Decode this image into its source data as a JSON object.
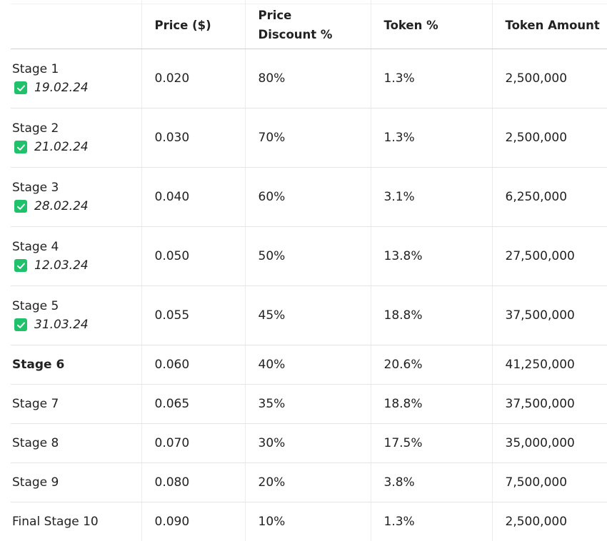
{
  "table": {
    "headers": [
      "",
      "Price ($)",
      "Price Discount %",
      "Token %",
      "Token Amount"
    ],
    "header_lines": {
      "price_discount": [
        "Price",
        "Discount %"
      ]
    },
    "rows": [
      {
        "stage": "Stage 1",
        "date": "19.02.24",
        "completed": true,
        "bold": false,
        "price": "0.020",
        "discount": "80%",
        "token_pct": "1.3%",
        "token_amount": "2,500,000"
      },
      {
        "stage": "Stage 2",
        "date": "21.02.24",
        "completed": true,
        "bold": false,
        "price": "0.030",
        "discount": "70%",
        "token_pct": "1.3%",
        "token_amount": "2,500,000"
      },
      {
        "stage": "Stage 3",
        "date": "28.02.24",
        "completed": true,
        "bold": false,
        "price": "0.040",
        "discount": "60%",
        "token_pct": "3.1%",
        "token_amount": "6,250,000"
      },
      {
        "stage": "Stage 4",
        "date": "12.03.24",
        "completed": true,
        "bold": false,
        "price": "0.050",
        "discount": "50%",
        "token_pct": "13.8%",
        "token_amount": "27,500,000"
      },
      {
        "stage": "Stage 5",
        "date": "31.03.24",
        "completed": true,
        "bold": false,
        "price": "0.055",
        "discount": "45%",
        "token_pct": "18.8%",
        "token_amount": "37,500,000"
      },
      {
        "stage": "Stage 6",
        "date": "",
        "completed": false,
        "bold": true,
        "price": "0.060",
        "discount": "40%",
        "token_pct": "20.6%",
        "token_amount": "41,250,000"
      },
      {
        "stage": "Stage 7",
        "date": "",
        "completed": false,
        "bold": false,
        "price": "0.065",
        "discount": "35%",
        "token_pct": "18.8%",
        "token_amount": "37,500,000"
      },
      {
        "stage": "Stage 8",
        "date": "",
        "completed": false,
        "bold": false,
        "price": "0.070",
        "discount": "30%",
        "token_pct": "17.5%",
        "token_amount": "35,000,000"
      },
      {
        "stage": "Stage 9",
        "date": "",
        "completed": false,
        "bold": false,
        "price": "0.080",
        "discount": "20%",
        "token_pct": "3.8%",
        "token_amount": "7,500,000"
      },
      {
        "stage": "Final Stage 10",
        "date": "",
        "completed": false,
        "bold": false,
        "price": "0.090",
        "discount": "10%",
        "token_pct": "1.3%",
        "token_amount": "2,500,000"
      }
    ]
  },
  "icons": {
    "completed": "checkbox-checked-icon"
  },
  "colors": {
    "check_green": "#1fc26b",
    "text": "#222222",
    "divider": "#e4e4e4"
  }
}
